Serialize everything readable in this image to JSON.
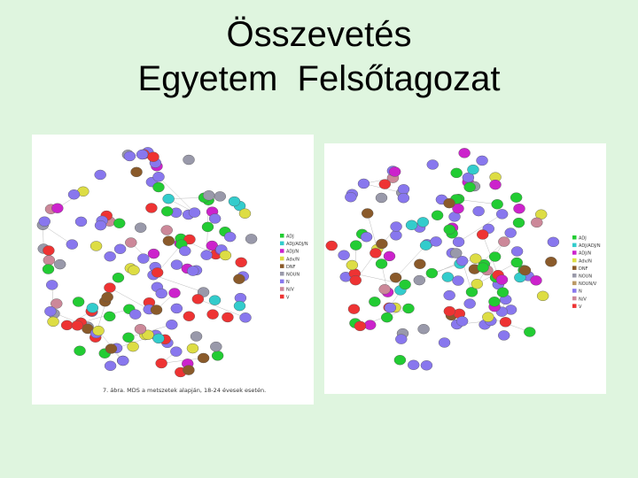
{
  "title": {
    "line1": "Összevetés",
    "line2": "Egyetem  Felsőtagozat"
  },
  "colors": {
    "background": "#dff5df",
    "ADJ": "#22cc33",
    "ADJ/ADJ/N": "#33cccc",
    "ADJ/N": "#cc22cc",
    "Adv/N": "#dddd44",
    "DNF": "#8a5a2a",
    "NOUN": "#9999aa",
    "N": "#8877ee",
    "N/V": "#cc8899",
    "V": "#ee3333"
  },
  "left_figure": {
    "legend": [
      "ADJ",
      "ADJ/ADJ/N",
      "ADJ/N",
      "Adv/N",
      "DNF",
      "NOUN",
      "N",
      "N/V",
      "V"
    ],
    "caption": "7. ábra. MDS a metszetek alapján, 18-24 évesek esetén."
  },
  "right_figure": {
    "legend": [
      "ADJ",
      "ADJ/ADJ/N",
      "ADJ/N",
      "Adv/N",
      "DNF",
      "NOUN",
      "NOUN/V",
      "N",
      "N/V",
      "V"
    ]
  }
}
